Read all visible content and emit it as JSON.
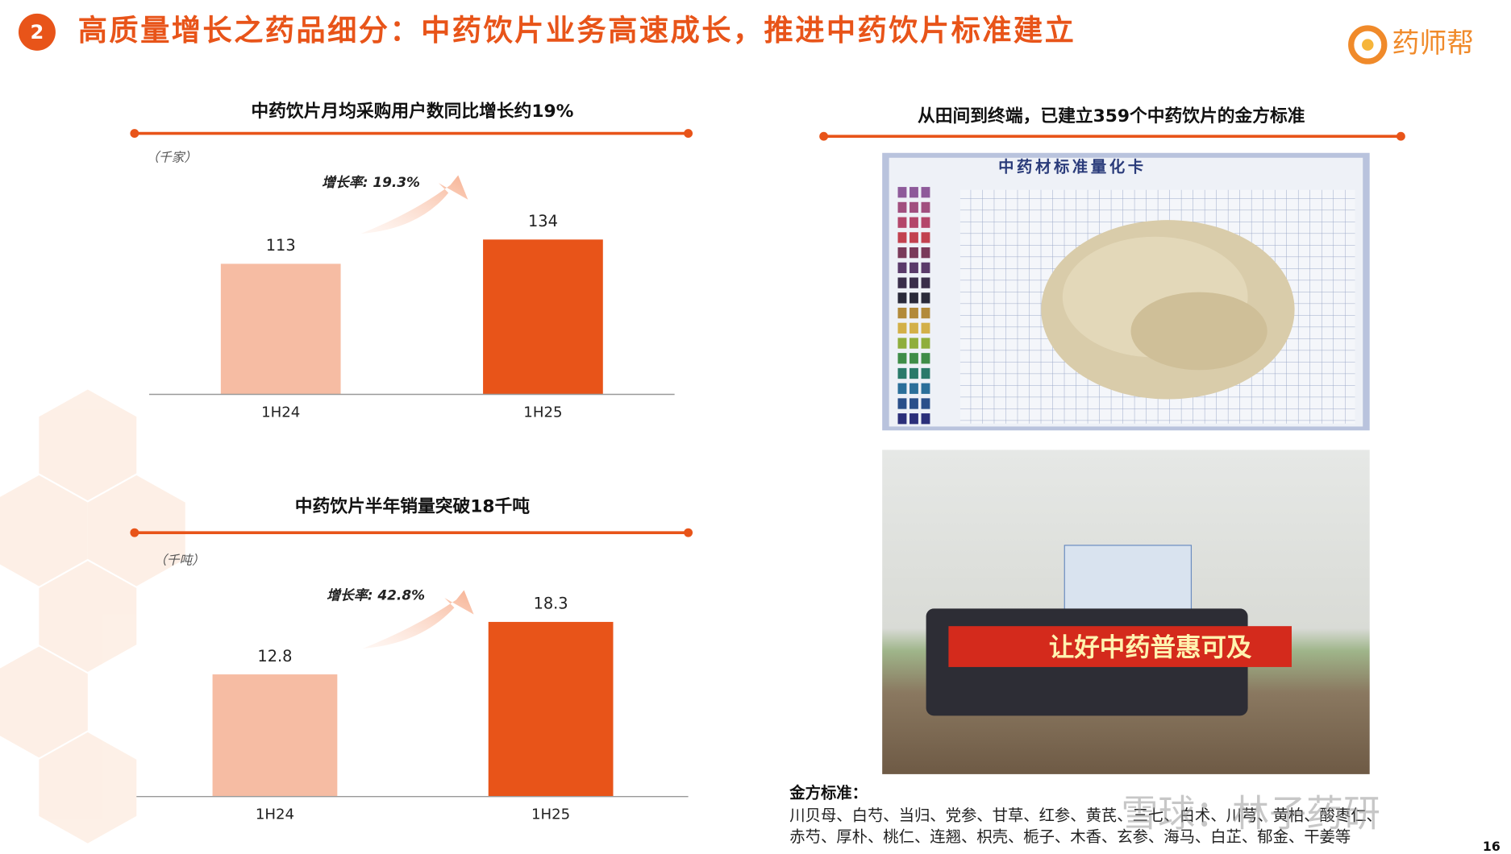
{
  "header": {
    "number": "2",
    "title": "高质量增长之药品细分：中药饮片业务高速成长，推进中药饮片标准建立",
    "logo": "药师帮"
  },
  "chart_data": [
    {
      "type": "bar",
      "title": "中药饮片月均采购用户数同比增长约19%",
      "unit": "（千家）",
      "annotation": "增长率: 19.3%",
      "categories": [
        "1H24",
        "1H25"
      ],
      "values": [
        113,
        134
      ],
      "colors": [
        "#f6bca3",
        "#e85419"
      ],
      "ylim": [
        0,
        150
      ]
    },
    {
      "type": "bar",
      "title": "中药饮片半年销量突破18千吨",
      "unit": "（千吨）",
      "annotation": "增长率: 42.8%",
      "categories": [
        "1H24",
        "1H25"
      ],
      "values": [
        12.8,
        18.3
      ],
      "colors": [
        "#f6bca3",
        "#e85419"
      ],
      "ylim": [
        0,
        20
      ]
    }
  ],
  "right": {
    "title": "从田间到终端，已建立359个中药饮片的金方标准",
    "card_title": "中药材标准量化卡",
    "banner": "让好中药普惠可及",
    "standard_label": "金方标准：",
    "standard_lines": [
      "川贝母、白芍、当归、党参、甘草、红参、黄芪、三七、白术、川芎、黄柏、酸枣仁、",
      "赤芍、厚朴、桃仁、连翘、枳壳、栀子、木香、玄参、海马、白芷、郁金、干姜等"
    ]
  },
  "watermark": "雪球：林子药研",
  "page_number": "16"
}
